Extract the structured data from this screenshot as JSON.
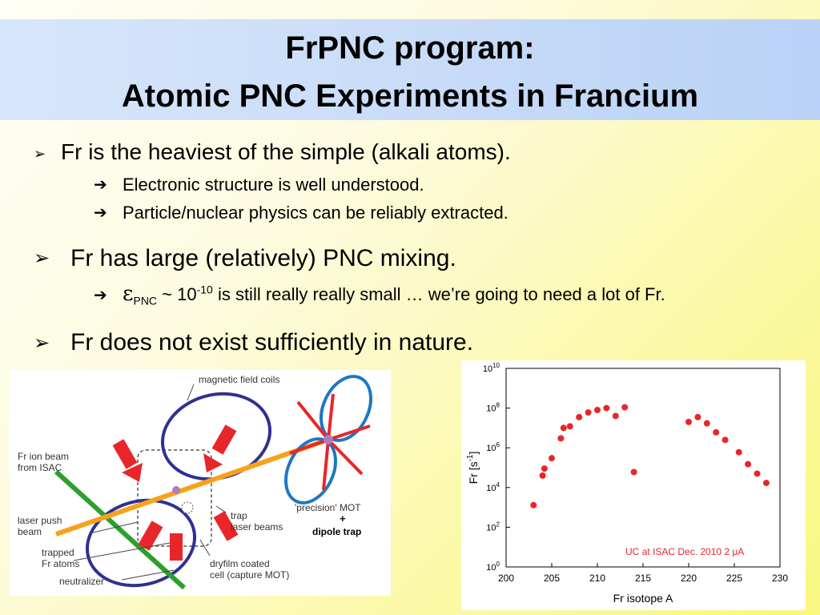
{
  "title": {
    "line1": "FrPNC program:",
    "line2": "Atomic PNC Experiments in Francium"
  },
  "bullets": {
    "b1": "Fr is the heaviest of the simple (alkali atoms).",
    "b1_sub1": "Electronic structure is well understood.",
    "b1_sub2": "Particle/nuclear physics can be reliably extracted.",
    "b2": "Fr has large (relatively) PNC mixing.",
    "b2_sub1_eps": "ε",
    "b2_sub1_sub": "PNC",
    "b2_sub1_mid": " ~ 10",
    "b2_sub1_exp": "-10",
    "b2_sub1_rest": " is still really really small … we’re going to need a lot of Fr.",
    "b3": "Fr does not exist sufficiently in nature."
  },
  "markers": {
    "main": "➢",
    "sub": "➔"
  },
  "diagram": {
    "labels": {
      "magnetic_field_coils": "magnetic field coils",
      "fr_ion_beam_1": "Fr ion beam",
      "fr_ion_beam_2": "from ISAC",
      "laser_push_1": "laser push",
      "laser_push_2": "beam",
      "trapped_1": "trapped",
      "trapped_2": "Fr atoms",
      "neutralizer": "neutralizer",
      "dryfilm_1": "dryfilm coated",
      "dryfilm_2": "cell (capture MOT)",
      "trap_1": "trap",
      "trap_2": "laser beams",
      "precision_mot": "'precision' MOT",
      "plus": "+",
      "dipole_trap": "dipole trap"
    },
    "colors": {
      "coil": "#2e3192",
      "green_beam": "#2ca02c",
      "orange_beam": "#f7a21b",
      "red_arrow": "#e8262a",
      "precision_coil": "#1f77c0"
    }
  },
  "chart_data": {
    "type": "scatter",
    "xlabel": "Fr isotope A",
    "ylabel": "Fr [s",
    "ylabel_sup": "-1",
    "ylabel_close": "]",
    "xlim": [
      200,
      230
    ],
    "ylim_log10": [
      0,
      10
    ],
    "yscale": "log",
    "x_ticks": [
      "200",
      "205",
      "210",
      "215",
      "220",
      "225",
      "230"
    ],
    "y_ticks": [
      {
        "base": "10",
        "exp": "10"
      },
      {
        "base": "10",
        "exp": "8"
      },
      {
        "base": "10",
        "exp": "6"
      },
      {
        "base": "10",
        "exp": "4"
      },
      {
        "base": "10",
        "exp": "2"
      },
      {
        "base": "10",
        "exp": "0"
      }
    ],
    "annotation": "UC at ISAC Dec. 2010 2 μA",
    "marker_color": "#e8262a",
    "points": [
      {
        "x": 203,
        "y": "1.3e3"
      },
      {
        "x": 204,
        "y": "4e4"
      },
      {
        "x": 204.2,
        "y": "9e4"
      },
      {
        "x": 205,
        "y": "3e5"
      },
      {
        "x": 206,
        "y": "3e6"
      },
      {
        "x": 206.3,
        "y": "1e7"
      },
      {
        "x": 207,
        "y": "1.2e7"
      },
      {
        "x": 208,
        "y": "3.5e7"
      },
      {
        "x": 209,
        "y": "6e7"
      },
      {
        "x": 210,
        "y": "8e7"
      },
      {
        "x": 211,
        "y": "1e8"
      },
      {
        "x": 212,
        "y": "4e7"
      },
      {
        "x": 213,
        "y": "1.1e8"
      },
      {
        "x": 214,
        "y": "6e4"
      },
      {
        "x": 220,
        "y": "2e7"
      },
      {
        "x": 221,
        "y": "3.5e7"
      },
      {
        "x": 222,
        "y": "1.7e7"
      },
      {
        "x": 223,
        "y": "6e6"
      },
      {
        "x": 224,
        "y": "2.5e6"
      },
      {
        "x": 225.5,
        "y": "6e5"
      },
      {
        "x": 226.5,
        "y": "1.5e5"
      },
      {
        "x": 227.5,
        "y": "5e4"
      },
      {
        "x": 228.5,
        "y": "1.7e4"
      }
    ]
  }
}
